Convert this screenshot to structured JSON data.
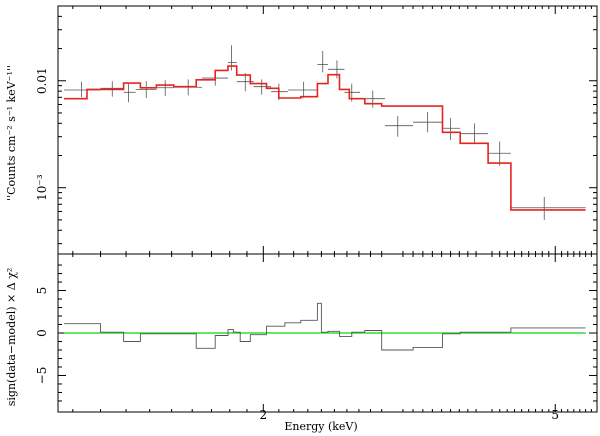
{
  "chart_data": [
    {
      "type": "scatter",
      "panel": "spectrum",
      "ylabel": "Counts cm⁻² s⁻¹ keV⁻¹",
      "ylabel_display": "''Counts cm⁻² s⁻¹ keV⁻¹''",
      "xscale": "log",
      "yscale": "log",
      "xlim": [
        1.05,
        5.7
      ],
      "ylim": [
        0.00024,
        0.05
      ],
      "yticks": [
        {
          "value": 0.01,
          "label": "0.01"
        },
        {
          "value": 0.001,
          "label": "10⁻³"
        }
      ],
      "colors": {
        "data": "#555555",
        "model": "#e8231f"
      },
      "series": [
        {
          "role": "data",
          "points": [
            {
              "x": 1.13,
              "xerr": [
                1.07,
                1.2
              ],
              "y": 0.0082,
              "yerr": [
                0.007,
                0.0098
              ]
            },
            {
              "x": 1.245,
              "xerr": [
                1.2,
                1.29
              ],
              "y": 0.0085,
              "yerr": [
                0.0071,
                0.0099
              ]
            },
            {
              "x": 1.31,
              "xerr": [
                1.29,
                1.34
              ],
              "y": 0.0078,
              "yerr": [
                0.0063,
                0.0096
              ]
            },
            {
              "x": 1.385,
              "xerr": [
                1.34,
                1.43
              ],
              "y": 0.0083,
              "yerr": [
                0.0069,
                0.0099
              ]
            },
            {
              "x": 1.47,
              "xerr": [
                1.43,
                1.51
              ],
              "y": 0.0086,
              "yerr": [
                0.0072,
                0.0101
              ]
            },
            {
              "x": 1.58,
              "xerr": [
                1.51,
                1.65
              ],
              "y": 0.0087,
              "yerr": [
                0.0073,
                0.0103
              ]
            },
            {
              "x": 1.72,
              "xerr": [
                1.65,
                1.79
              ],
              "y": 0.0106,
              "yerr": [
                0.009,
                0.0125
              ]
            },
            {
              "x": 1.81,
              "xerr": [
                1.79,
                1.84
              ],
              "y": 0.0148,
              "yerr": [
                0.0125,
                0.0215
              ]
            },
            {
              "x": 1.89,
              "xerr": [
                1.84,
                1.94
              ],
              "y": 0.0098,
              "yerr": [
                0.008,
                0.0118
              ]
            },
            {
              "x": 1.99,
              "xerr": [
                1.94,
                2.05
              ],
              "y": 0.0088,
              "yerr": [
                0.0074,
                0.0103
              ]
            },
            {
              "x": 2.1,
              "xerr": [
                2.05,
                2.16
              ],
              "y": 0.0079,
              "yerr": [
                0.0066,
                0.0094
              ]
            },
            {
              "x": 2.27,
              "xerr": [
                2.16,
                2.37
              ],
              "y": 0.0082,
              "yerr": [
                0.0069,
                0.0098
              ]
            },
            {
              "x": 2.41,
              "xerr": [
                2.37,
                2.45
              ],
              "y": 0.0142,
              "yerr": [
                0.012,
                0.019
              ]
            },
            {
              "x": 2.52,
              "xerr": [
                2.45,
                2.58
              ],
              "y": 0.0128,
              "yerr": [
                0.0105,
                0.0155
              ]
            },
            {
              "x": 2.64,
              "xerr": [
                2.58,
                2.71
              ],
              "y": 0.0078,
              "yerr": [
                0.0064,
                0.0094
              ]
            },
            {
              "x": 2.82,
              "xerr": [
                2.71,
                2.93
              ],
              "y": 0.0068,
              "yerr": [
                0.0056,
                0.0081
              ]
            },
            {
              "x": 3.05,
              "xerr": [
                2.93,
                3.2
              ],
              "y": 0.0038,
              "yerr": [
                0.003,
                0.0047
              ]
            },
            {
              "x": 3.35,
              "xerr": [
                3.2,
                3.51
              ],
              "y": 0.0041,
              "yerr": [
                0.0033,
                0.0051
              ]
            },
            {
              "x": 3.6,
              "xerr": [
                3.51,
                3.71
              ],
              "y": 0.0036,
              "yerr": [
                0.0028,
                0.0045
              ]
            },
            {
              "x": 3.88,
              "xerr": [
                3.71,
                4.05
              ],
              "y": 0.0032,
              "yerr": [
                0.0026,
                0.004
              ]
            },
            {
              "x": 4.2,
              "xerr": [
                4.05,
                4.35
              ],
              "y": 0.0021,
              "yerr": [
                0.0016,
                0.0027
              ]
            },
            {
              "x": 4.83,
              "xerr": [
                4.35,
                5.5
              ],
              "y": 0.00065,
              "yerr": [
                0.0005,
                0.00082
              ]
            }
          ]
        },
        {
          "role": "model",
          "steps": [
            {
              "x0": 1.07,
              "x1": 1.15,
              "y": 0.0068
            },
            {
              "x0": 1.15,
              "x1": 1.29,
              "y": 0.0083
            },
            {
              "x0": 1.29,
              "x1": 1.36,
              "y": 0.0095
            },
            {
              "x0": 1.36,
              "x1": 1.43,
              "y": 0.0086
            },
            {
              "x0": 1.43,
              "x1": 1.51,
              "y": 0.0091
            },
            {
              "x0": 1.51,
              "x1": 1.62,
              "y": 0.0088
            },
            {
              "x0": 1.62,
              "x1": 1.72,
              "y": 0.0102
            },
            {
              "x0": 1.72,
              "x1": 1.79,
              "y": 0.0125
            },
            {
              "x0": 1.79,
              "x1": 1.84,
              "y": 0.0137
            },
            {
              "x0": 1.84,
              "x1": 1.92,
              "y": 0.0113
            },
            {
              "x0": 1.92,
              "x1": 2.02,
              "y": 0.0094
            },
            {
              "x0": 2.02,
              "x1": 2.1,
              "y": 0.0085
            },
            {
              "x0": 2.1,
              "x1": 2.25,
              "y": 0.0069
            },
            {
              "x0": 2.25,
              "x1": 2.37,
              "y": 0.0071
            },
            {
              "x0": 2.37,
              "x1": 2.45,
              "y": 0.0094
            },
            {
              "x0": 2.45,
              "x1": 2.54,
              "y": 0.0114
            },
            {
              "x0": 2.54,
              "x1": 2.62,
              "y": 0.0083
            },
            {
              "x0": 2.62,
              "x1": 2.75,
              "y": 0.0068
            },
            {
              "x0": 2.75,
              "x1": 2.9,
              "y": 0.0061
            },
            {
              "x0": 2.9,
              "x1": 3.2,
              "y": 0.0058
            },
            {
              "x0": 3.2,
              "x1": 3.51,
              "y": 0.0058
            },
            {
              "x0": 3.51,
              "x1": 3.71,
              "y": 0.0033
            },
            {
              "x0": 3.71,
              "x1": 4.05,
              "y": 0.0026
            },
            {
              "x0": 4.05,
              "x1": 4.35,
              "y": 0.0017
            },
            {
              "x0": 4.35,
              "x1": 5.5,
              "y": 0.00062
            }
          ]
        }
      ]
    },
    {
      "type": "line",
      "panel": "residuals",
      "xlabel": "Energy (keV)",
      "ylabel": "sign(data−model) × Δ χ²",
      "xscale": "log",
      "xlim": [
        1.05,
        5.7
      ],
      "ylim": [
        -9.3,
        9.3
      ],
      "xticks": [
        {
          "value": 2,
          "label": "2"
        },
        {
          "value": 5,
          "label": "5"
        }
      ],
      "yticks": [
        {
          "value": 5,
          "label": "5"
        },
        {
          "value": 0,
          "label": "0"
        },
        {
          "value": -5,
          "label": "−5"
        }
      ],
      "colors": {
        "residual": "#555555",
        "zero": "#33dd33"
      },
      "zero_line": 0,
      "series": [
        {
          "role": "residual",
          "steps": [
            {
              "x0": 1.07,
              "x1": 1.2,
              "y": 1.1
            },
            {
              "x0": 1.2,
              "x1": 1.29,
              "y": 0.1
            },
            {
              "x0": 1.29,
              "x1": 1.36,
              "y": -1.0
            },
            {
              "x0": 1.36,
              "x1": 1.43,
              "y": -0.1
            },
            {
              "x0": 1.43,
              "x1": 1.51,
              "y": -0.1
            },
            {
              "x0": 1.51,
              "x1": 1.62,
              "y": -0.1
            },
            {
              "x0": 1.62,
              "x1": 1.72,
              "y": -1.8
            },
            {
              "x0": 1.72,
              "x1": 1.79,
              "y": -0.3
            },
            {
              "x0": 1.79,
              "x1": 1.82,
              "y": 0.4
            },
            {
              "x0": 1.82,
              "x1": 1.86,
              "y": 0.1
            },
            {
              "x0": 1.86,
              "x1": 1.92,
              "y": -1.0
            },
            {
              "x0": 1.92,
              "x1": 2.02,
              "y": -0.2
            },
            {
              "x0": 2.02,
              "x1": 2.14,
              "y": 0.8
            },
            {
              "x0": 2.14,
              "x1": 2.25,
              "y": 1.2
            },
            {
              "x0": 2.25,
              "x1": 2.37,
              "y": 1.5
            },
            {
              "x0": 2.37,
              "x1": 2.4,
              "y": 3.5
            },
            {
              "x0": 2.4,
              "x1": 2.45,
              "y": 0.1
            },
            {
              "x0": 2.45,
              "x1": 2.54,
              "y": 0.2
            },
            {
              "x0": 2.54,
              "x1": 2.64,
              "y": -0.4
            },
            {
              "x0": 2.64,
              "x1": 2.75,
              "y": 0.1
            },
            {
              "x0": 2.75,
              "x1": 2.9,
              "y": 0.3
            },
            {
              "x0": 2.9,
              "x1": 3.2,
              "y": -2.0
            },
            {
              "x0": 3.2,
              "x1": 3.51,
              "y": -1.7
            },
            {
              "x0": 3.51,
              "x1": 3.71,
              "y": -0.1
            },
            {
              "x0": 3.71,
              "x1": 4.35,
              "y": 0.1
            },
            {
              "x0": 4.35,
              "x1": 5.5,
              "y": 0.6
            }
          ]
        }
      ]
    }
  ]
}
